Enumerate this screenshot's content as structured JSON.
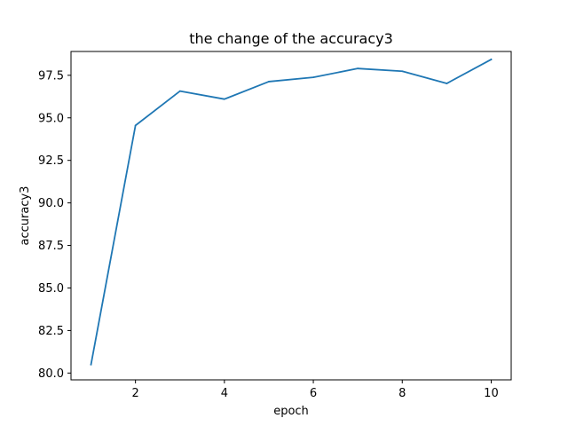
{
  "chart_data": {
    "type": "line",
    "title": "the change of the accuracy3",
    "xlabel": "epoch",
    "ylabel": "accuracy3",
    "xlim": [
      0.55,
      10.45
    ],
    "ylim": [
      79.6,
      98.9
    ],
    "x_ticks": [
      2,
      4,
      6,
      8,
      10
    ],
    "x_tick_labels": [
      "2",
      "4",
      "6",
      "8",
      "10"
    ],
    "y_ticks": [
      80.0,
      82.5,
      85.0,
      87.5,
      90.0,
      92.5,
      95.0,
      97.5
    ],
    "y_tick_labels": [
      "80.0",
      "82.5",
      "85.0",
      "87.5",
      "90.0",
      "92.5",
      "95.0",
      "97.5"
    ],
    "grid": false,
    "series": [
      {
        "color": "#1f77b4",
        "x": [
          1,
          2,
          3,
          4,
          5,
          6,
          7,
          8,
          9,
          10
        ],
        "values": [
          80.5,
          94.55,
          96.57,
          96.1,
          97.13,
          97.38,
          97.9,
          97.74,
          97.02,
          98.43
        ]
      }
    ]
  }
}
